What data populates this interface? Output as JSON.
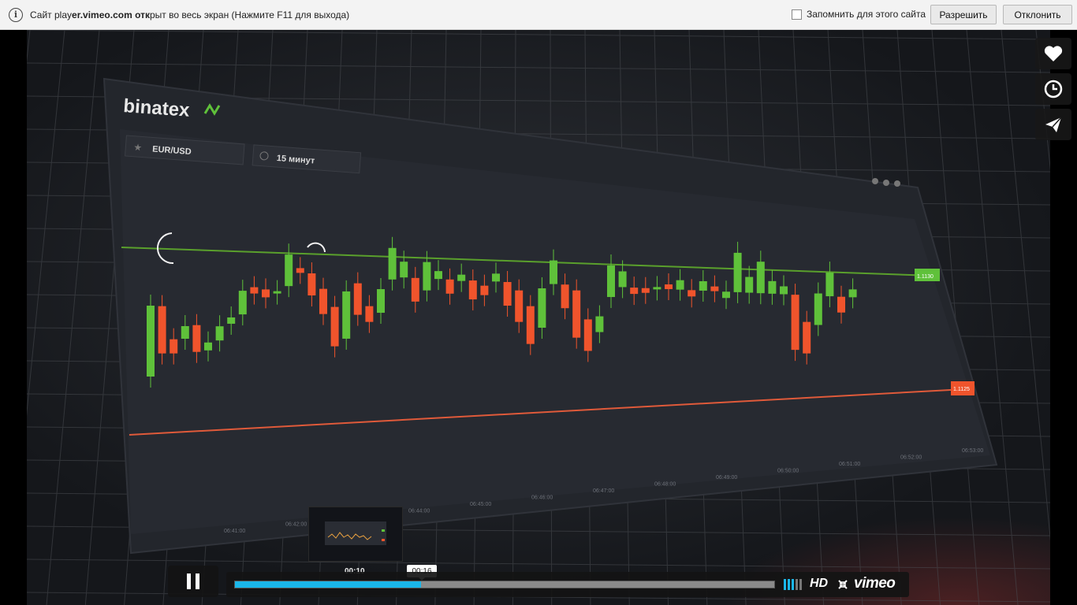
{
  "fullscreen_bar": {
    "message_prefix": "Сайт play",
    "message_domain": "er.vimeo.com",
    "message_mid": " отк",
    "message_suffix": "рыт во весь экран (Нажмите F11 для выхода)",
    "remember_label": "Запомнить для этого сайта",
    "allow_label": "Разрешить",
    "deny_label": "Отклонить",
    "icon": "info-icon"
  },
  "video": {
    "brand_text": "binatex",
    "pair_label": "EUR/USD",
    "timeframe_label": "15 минут",
    "time_axis_labels": [
      "06:41:00",
      "06:42:00",
      "06:43:00",
      "06:44:00",
      "06:45:00",
      "06:46:00",
      "06:47:00",
      "06:48:00",
      "06:49:00",
      "06:50:00",
      "06:51:00",
      "06:52:00",
      "06:53:00"
    ],
    "resistance_tag": "1.1130",
    "support_tag": "1.1125",
    "colors": {
      "up": "#5fc13a",
      "down": "#f0542c",
      "resistance": "#5aa02c",
      "support": "#e05a3a"
    }
  },
  "side_buttons": [
    {
      "name": "like-button",
      "icon": "heart-icon"
    },
    {
      "name": "watch-later-button",
      "icon": "clock-icon"
    },
    {
      "name": "share-button",
      "icon": "paper-plane-icon"
    }
  ],
  "player": {
    "hover_time": "00:10",
    "current_time": "00:16",
    "played_fraction": 0.345,
    "loaded_fraction": 1.0,
    "hd_label": "HD",
    "logo_text": "vimeo",
    "volume_level": 0.6,
    "accent_color": "#1ab7ea"
  }
}
